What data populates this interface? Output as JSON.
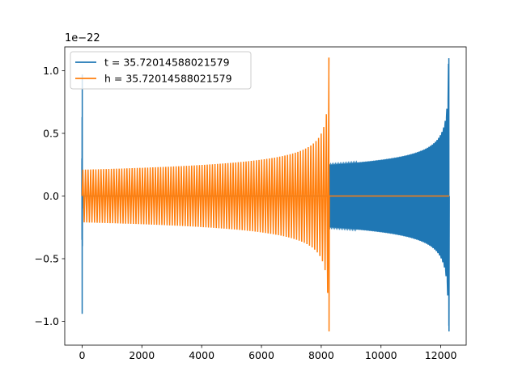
{
  "chart_data": {
    "type": "line",
    "y_scale_label": "1e−22",
    "x_range": [
      -580,
      12850
    ],
    "y_range": [
      -1.19,
      1.19
    ],
    "x_ticks": [
      0,
      2000,
      4000,
      6000,
      8000,
      10000,
      12000
    ],
    "y_ticks": [
      -1.0,
      -0.5,
      0.0,
      0.5,
      1.0
    ],
    "x_tick_labels": [
      "0",
      "2000",
      "4000",
      "6000",
      "8000",
      "10000",
      "12000"
    ],
    "y_tick_labels": [
      "−1.0",
      "−0.5",
      "0.0",
      "0.5",
      "1.0"
    ],
    "legend_position": "top-left",
    "grid": false,
    "series": [
      {
        "name": "t = 35.72014588021579",
        "color": "#1f77b4",
        "description": "waveform: initial burst near x=0 (peak ~0.97, trough ~-0.94), flat zero 0-8250, then chirp from 8250 to 12270 growing from ~0.25 to peak 1.10 / trough -1.08",
        "key_points": [
          {
            "x": 0,
            "y_max": 0.97,
            "y_min": -0.94
          },
          {
            "x": 8250,
            "y_max": 0.25,
            "y_min": -0.25
          },
          {
            "x": 10000,
            "y_max": 0.28,
            "y_min": -0.28
          },
          {
            "x": 12000,
            "y_max": 0.55,
            "y_min": -0.55
          },
          {
            "x": 12270,
            "y_max": 1.1,
            "y_min": -1.08
          }
        ]
      },
      {
        "name": "h = 35.72014588021579",
        "color": "#ff7f0e",
        "description": "waveform: chirp from 0 to 8260 growing from ~0.21 to peak 1.10 / trough -1.08, flat zero after",
        "key_points": [
          {
            "x": 0,
            "y_max": 0.21,
            "y_min": -0.21
          },
          {
            "x": 4000,
            "y_max": 0.23,
            "y_min": -0.23
          },
          {
            "x": 7000,
            "y_max": 0.3,
            "y_min": -0.3
          },
          {
            "x": 8000,
            "y_max": 0.5,
            "y_min": -0.5
          },
          {
            "x": 8260,
            "y_max": 1.1,
            "y_min": -1.08
          }
        ]
      }
    ]
  }
}
